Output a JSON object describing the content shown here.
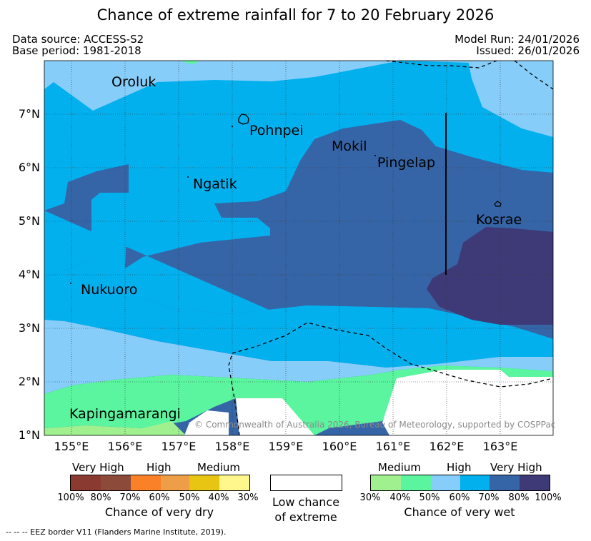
{
  "title": "Chance of extreme rainfall for 7 to 20 February 2026",
  "meta": {
    "data_source": "Data source: ACCESS-S2",
    "base_period": "Base period: 1981-2018",
    "model_run": "Model Run: 24/01/2026",
    "issued": "Issued: 26/01/2026"
  },
  "map": {
    "x_ticks": [
      "155°E",
      "156°E",
      "157°E",
      "158°E",
      "159°E",
      "160°E",
      "161°E",
      "162°E",
      "163°E"
    ],
    "y_ticks": [
      "7°N",
      "6°N",
      "5°N",
      "4°N",
      "3°N",
      "2°N",
      "1°N"
    ],
    "places": {
      "oroluk": "Oroluk",
      "pohnpei": "Pohnpei",
      "mokil": "Mokil",
      "pingelap": "Pingelap",
      "ngatik": "Ngatik",
      "kosrae": "Kosrae",
      "nukuoro": "Nukuoro",
      "kapingamarangi": "Kapingamarangi"
    },
    "copyright": "© Commonwealth of Australia 2026, Bureau of Meteorology, supported by COSPPac"
  },
  "colors": {
    "wet_30": "#a0f090",
    "wet_40": "#5af59e",
    "wet_50": "#87cdfa",
    "wet_60": "#02b0ee",
    "wet_70": "#3565a7",
    "wet_80": "#3e3a77",
    "dry_100": "#8b3a32",
    "dry_80": "#8b4a3a",
    "dry_70": "#fb8129",
    "dry_60": "#ef9e48",
    "dry_50": "#e7c512",
    "dry_40": "#fff68c"
  },
  "legend": {
    "dry": {
      "headings": [
        "Very High",
        "High",
        "Medium"
      ],
      "pcts": [
        "100%",
        "80%",
        "70%",
        "60%",
        "50%",
        "40%",
        "30%"
      ],
      "caption": "Chance of very dry"
    },
    "low": {
      "caption_line1": "Low chance",
      "caption_line2": "of extreme"
    },
    "wet": {
      "headings": [
        "Medium",
        "High",
        "Very High"
      ],
      "pcts": [
        "30%",
        "40%",
        "50%",
        "60%",
        "70%",
        "80%",
        "100%"
      ],
      "caption": "Chance of very wet"
    }
  },
  "eez_note": "--  --  -- EEZ border V11 (Flanders Marine Institute, 2019)."
}
